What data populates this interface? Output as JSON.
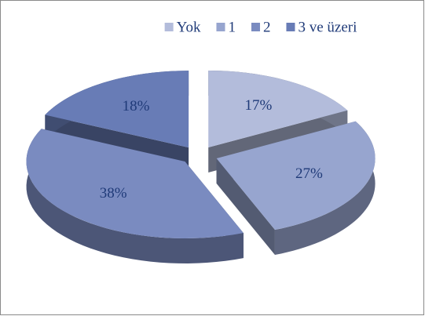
{
  "chart_data": {
    "type": "pie",
    "categories": [
      "Yok",
      "1",
      "2",
      "3 ve üzeri"
    ],
    "values": [
      17,
      27,
      38,
      18
    ],
    "value_labels": [
      "17%",
      "27%",
      "38%",
      "18%"
    ],
    "colors": [
      "#b3bcdb",
      "#97a5cf",
      "#7a8bc0",
      "#687cb6"
    ],
    "legend": "top"
  }
}
